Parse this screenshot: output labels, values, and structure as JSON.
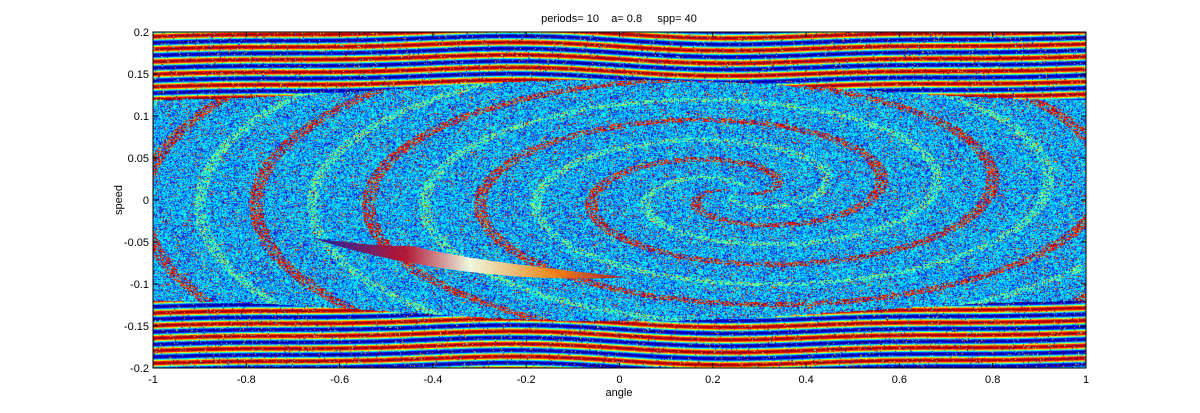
{
  "chart_data": {
    "type": "heatmap",
    "title": "periods= 10    a= 0.8     spp= 40",
    "xlabel": "angle",
    "ylabel": "speed",
    "xlim": [
      -1,
      1
    ],
    "ylim": [
      -0.2,
      0.2
    ],
    "x_ticks": [
      -1,
      -0.8,
      -0.6,
      -0.4,
      -0.2,
      0,
      0.2,
      0.4,
      0.6,
      0.8,
      1
    ],
    "x_tick_labels": [
      "-1",
      "-0.8",
      "-0.6",
      "-0.4",
      "-0.2",
      "0",
      "0.2",
      "0.4",
      "0.6",
      "0.8",
      "1"
    ],
    "y_ticks": [
      0.2,
      0.15,
      0.1,
      0.05,
      0,
      -0.05,
      -0.1,
      -0.15,
      -0.2
    ],
    "y_tick_labels": [
      "0.2",
      "0.15",
      "0.1",
      "0.05",
      "0",
      "-0.05",
      "-0.1",
      "-0.15",
      "-0.2"
    ],
    "colormap": "jet",
    "grid": false,
    "legend": "none"
  }
}
